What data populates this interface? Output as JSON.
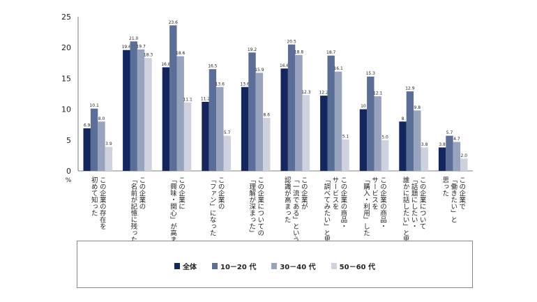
{
  "chart_data": {
    "type": "bar",
    "unit_label": "%",
    "ylim": [
      0,
      25
    ],
    "yticks": [
      "0",
      "5",
      "10",
      "15",
      "20",
      "25"
    ],
    "categories": [
      [
        "この企業の存在を",
        "初めて知った"
      ],
      [
        "この企業の",
        "「名前が記憶に残った」"
      ],
      [
        "この企業に",
        "「興味・関心」が高まった"
      ],
      [
        "この企業の",
        "「ファン」になった"
      ],
      [
        "この企業についての",
        "「理解が深まった」"
      ],
      [
        "この企業が",
        "「一流である」という",
        "認識が高まった"
      ],
      [
        "この企業の商品・",
        "サービスを",
        "「調べてみたい」と思った"
      ],
      [
        "この企業の商品・",
        "サービスを",
        "「購入・利用」した"
      ],
      [
        "この企業について",
        "「話題にしたい・",
        "誰かに話したい」と思った"
      ],
      [
        "この企業で",
        "「働きたい」と",
        "思った"
      ]
    ],
    "series": [
      {
        "name": "全体",
        "color": "#13265e",
        "values": [
          6.9,
          19.6,
          16.8,
          11.2,
          13.6,
          16.6,
          12.2,
          10,
          8,
          3.8
        ],
        "labels": [
          "6.9",
          "19.6",
          "16.8",
          "11.2",
          "13.6",
          "16.6",
          "12.2",
          "10",
          "8",
          "3.8"
        ]
      },
      {
        "name": "10－20 代",
        "color": "#5a6e98",
        "values": [
          10.1,
          21.0,
          23.6,
          16.5,
          19.2,
          20.5,
          18.7,
          15.3,
          12.9,
          5.7
        ],
        "labels": [
          "10.1",
          "21.0",
          "23.6",
          "16.5",
          "19.2",
          "20.5",
          "18.7",
          "15.3",
          "12.9",
          "5.7"
        ]
      },
      {
        "name": "30－40 代",
        "color": "#98a4be",
        "values": [
          8.0,
          19.7,
          18.6,
          13.6,
          15.9,
          18.8,
          16.1,
          12.1,
          9.8,
          4.7
        ],
        "labels": [
          "8.0",
          "19.7",
          "18.6",
          "13.6",
          "15.9",
          "18.8",
          "16.1",
          "12.1",
          "9.8",
          "4.7"
        ]
      },
      {
        "name": "50－60 代",
        "color": "#cdd2de",
        "values": [
          3.9,
          18.3,
          11.1,
          5.7,
          8.6,
          12.3,
          5.1,
          5.0,
          3.8,
          2.0
        ],
        "labels": [
          "3.9",
          "18.3",
          "11.1",
          "5.7",
          "8.6",
          "12.3",
          "5.1",
          "5.0",
          "3.8",
          "2.0"
        ]
      }
    ]
  }
}
